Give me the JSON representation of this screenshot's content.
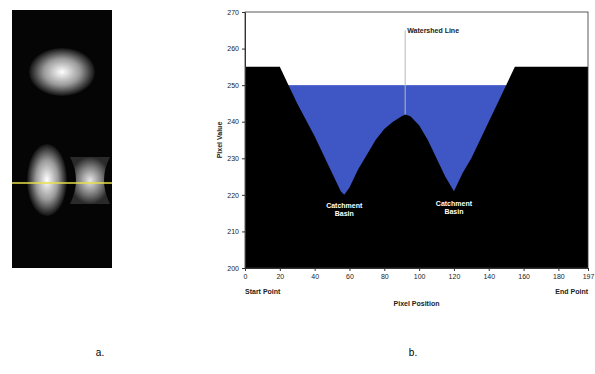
{
  "figure_labels": [
    "a.",
    "b."
  ],
  "chart_data": {
    "type": "area",
    "x": [
      0,
      20,
      25,
      30,
      40,
      50,
      55,
      57,
      60,
      65,
      70,
      75,
      80,
      85,
      90,
      92,
      95,
      100,
      105,
      110,
      115,
      120,
      125,
      130,
      140,
      150,
      155,
      197
    ],
    "values": [
      255,
      255,
      250,
      245,
      236,
      226,
      221,
      220,
      222,
      227,
      231,
      235,
      238,
      240,
      241.5,
      242,
      241.5,
      239,
      235,
      230,
      225,
      221,
      226,
      230,
      240,
      250,
      255,
      255
    ],
    "color": "#000000",
    "xlabel": "Pixel Position",
    "ylabel": "Pixel Value",
    "xlim": [
      0,
      197
    ],
    "xticks": [
      0,
      20,
      40,
      60,
      80,
      100,
      120,
      140,
      160,
      180,
      197
    ],
    "ylim": [
      200,
      270
    ],
    "yticks": [
      200,
      210,
      220,
      230,
      240,
      250,
      260,
      270
    ],
    "axis_end_labels": [
      "Start Point",
      "End Point"
    ],
    "water": {
      "level": 250,
      "color": "#3f57c4"
    },
    "watershed": {
      "label": "Watershed Line",
      "x": 92,
      "top": 265
    },
    "annotations": [
      {
        "lines": [
          "Catchment",
          "Basin"
        ],
        "x": 57,
        "y": 216.5
      },
      {
        "lines": [
          "Catchment",
          "Basin"
        ],
        "x": 120,
        "y": 217
      }
    ]
  }
}
